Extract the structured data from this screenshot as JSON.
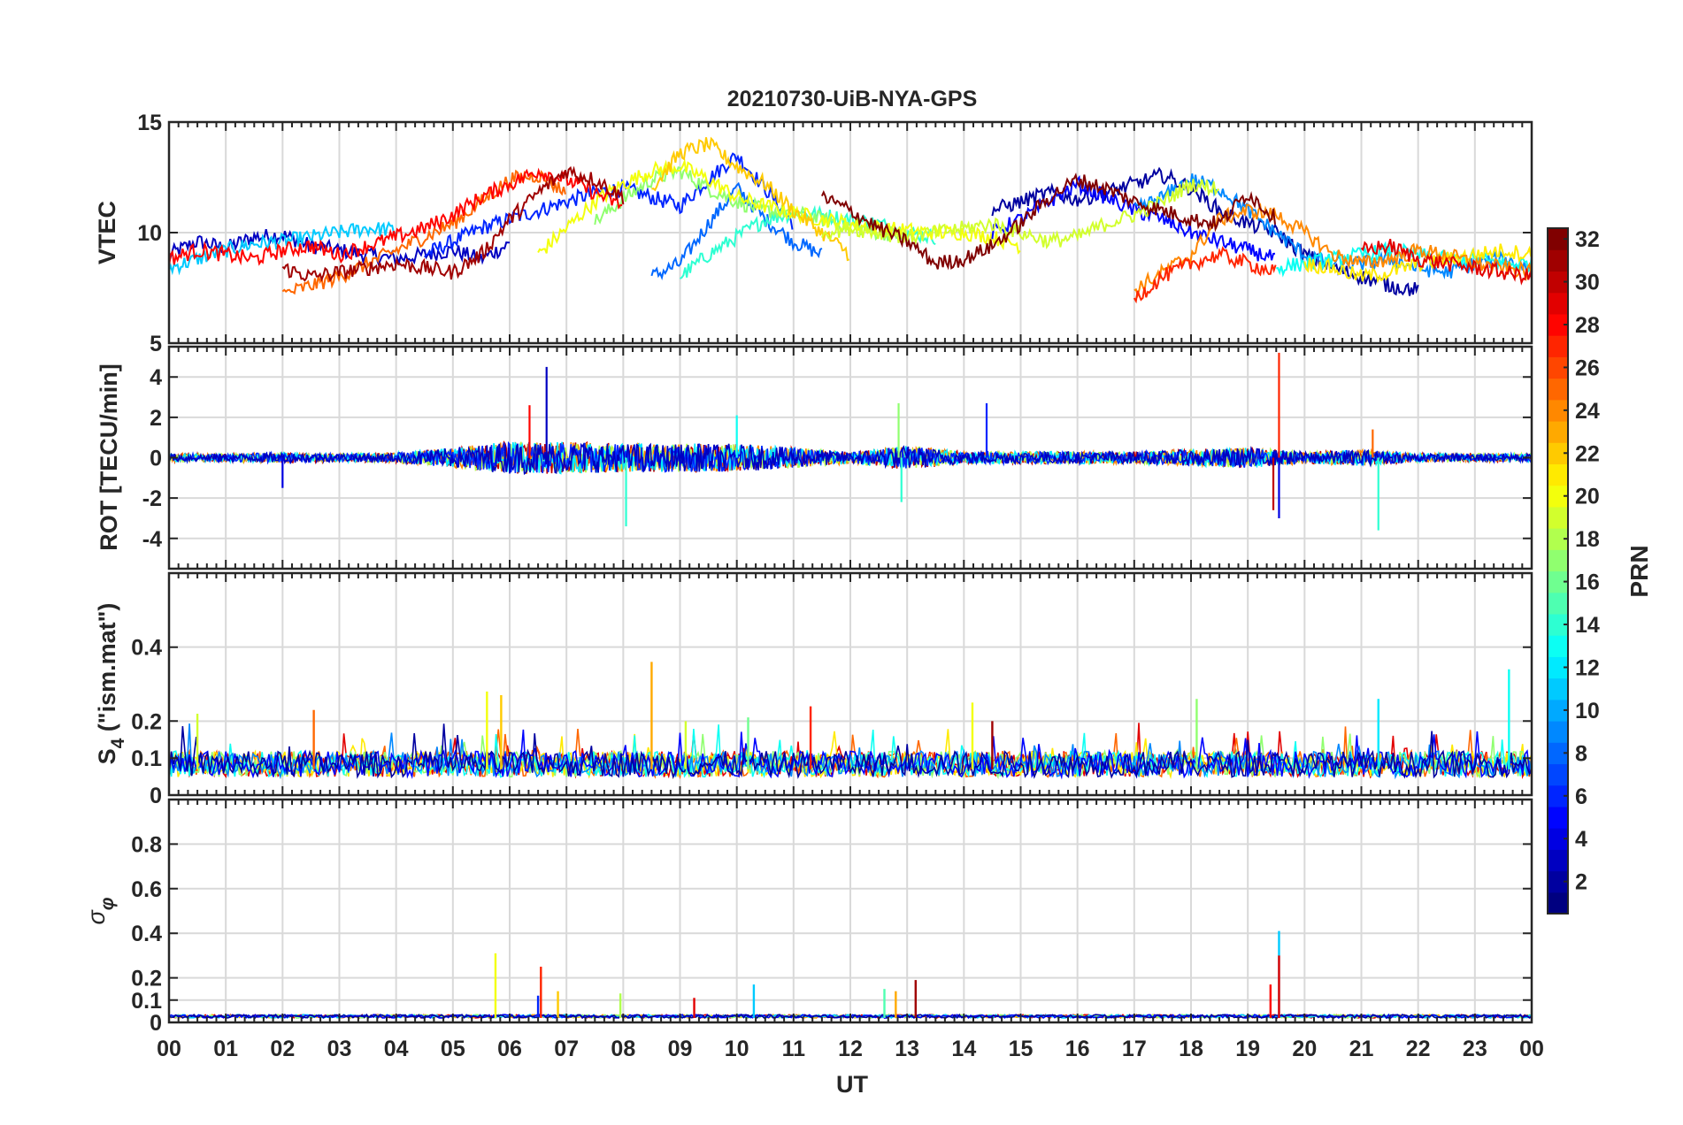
{
  "chart_data": [
    {
      "type": "line",
      "panel": "vtec",
      "title": "20210730-UiB-NYA-GPS",
      "ylabel": "VTEC",
      "ylim": [
        5,
        15
      ],
      "yticks": [
        5,
        10,
        15
      ],
      "xlim": [
        0,
        24
      ],
      "grid": true,
      "series": [
        {
          "prn": 3,
          "x": [
            0,
            0.5,
            1,
            1.5,
            2,
            2.5,
            3,
            3.5,
            4,
            4.5,
            5,
            5.5,
            6
          ],
          "y": [
            9.0,
            9.6,
            9.3,
            9.8,
            9.9,
            9.4,
            9.2,
            9.0,
            8.8,
            9.0,
            9.2,
            8.8,
            9.5
          ]
        },
        {
          "prn": 6,
          "x": [
            4.5,
            5,
            5.5,
            6,
            6.5,
            7,
            7.5,
            8,
            8.5,
            9,
            9.5,
            10,
            10.5,
            11
          ],
          "y": [
            9.0,
            9.6,
            10.2,
            10.6,
            11.0,
            11.4,
            11.8,
            12.0,
            11.6,
            11.2,
            12.4,
            13.5,
            12.0,
            10.4
          ]
        },
        {
          "prn": 8,
          "x": [
            8.5,
            9,
            9.5,
            10,
            10.5,
            11,
            11.5
          ],
          "y": [
            8.0,
            8.6,
            10.4,
            12.0,
            10.6,
            9.6,
            9.0
          ]
        },
        {
          "prn": 11,
          "x": [
            0,
            0.5,
            1,
            1.5,
            2,
            2.5,
            3,
            3.5,
            4
          ],
          "y": [
            8.4,
            8.8,
            9.2,
            9.5,
            9.6,
            9.8,
            10.0,
            10.2,
            10.1
          ]
        },
        {
          "prn": 14,
          "x": [
            9,
            9.5,
            10,
            10.5,
            11,
            11.5,
            12,
            12.5,
            13,
            13.5
          ],
          "y": [
            8.0,
            9.0,
            9.8,
            10.6,
            10.9,
            10.8,
            10.6,
            10.4,
            10.0,
            9.8
          ]
        },
        {
          "prn": 17,
          "x": [
            7.5,
            8,
            8.5,
            9,
            9.5,
            10,
            10.5,
            11,
            11.5,
            12,
            12.5,
            13
          ],
          "y": [
            10.5,
            11.5,
            12.4,
            12.8,
            12.0,
            11.4,
            11.0,
            10.9,
            10.6,
            10.3,
            10.0,
            9.9
          ]
        },
        {
          "prn": 20,
          "x": [
            6.5,
            7,
            7.5,
            8,
            8.5,
            9,
            9.5,
            10,
            10.5,
            11,
            11.5,
            12,
            12.5,
            13,
            13.5,
            14,
            14.5,
            15
          ],
          "y": [
            9.0,
            10.2,
            11.4,
            12.2,
            12.8,
            13.0,
            12.4,
            11.6,
            11.2,
            10.9,
            10.6,
            10.4,
            10.2,
            10.1,
            10.0,
            10.0,
            9.8,
            9.4
          ]
        },
        {
          "prn": 22,
          "x": [
            8.5,
            9,
            9.5,
            10,
            10.5,
            11,
            11.5,
            12
          ],
          "y": [
            12.0,
            13.6,
            14.0,
            13.0,
            12.2,
            11.0,
            10.0,
            9.0
          ]
        },
        {
          "prn": 25,
          "x": [
            2,
            2.5,
            3,
            3.5,
            4,
            4.5,
            5,
            5.5,
            6,
            6.5,
            7
          ],
          "y": [
            7.2,
            7.6,
            8.0,
            8.6,
            9.2,
            9.8,
            10.4,
            11.4,
            12.4,
            12.6,
            11.8
          ]
        },
        {
          "prn": 28,
          "x": [
            0,
            0.5,
            1,
            1.5,
            2,
            2.5,
            3,
            3.5,
            4,
            4.5,
            5,
            5.5,
            6,
            6.5,
            7,
            7.5,
            8
          ],
          "y": [
            8.8,
            9.2,
            9.0,
            8.8,
            9.2,
            9.4,
            9.0,
            9.4,
            9.8,
            10.2,
            10.8,
            11.6,
            12.2,
            12.8,
            12.4,
            11.8,
            11.2
          ]
        },
        {
          "prn": 31,
          "x": [
            2,
            2.5,
            3,
            3.5,
            4,
            4.5,
            5,
            5.5,
            6,
            6.5,
            7,
            7.5,
            8
          ],
          "y": [
            8.4,
            8.0,
            8.2,
            8.4,
            8.6,
            8.4,
            8.2,
            9.0,
            10.6,
            11.8,
            12.8,
            12.4,
            11.6
          ]
        },
        {
          "prn": 2,
          "x": [
            14.5,
            15,
            15.5,
            16,
            16.5,
            17,
            17.5,
            18,
            18.5,
            19,
            19.5,
            20,
            20.5,
            21,
            21.5,
            22
          ],
          "y": [
            11.0,
            11.4,
            11.8,
            11.5,
            11.8,
            12.2,
            12.6,
            12.0,
            11.0,
            10.4,
            10.0,
            9.0,
            8.4,
            8.0,
            7.6,
            7.4
          ]
        },
        {
          "prn": 5,
          "x": [
            14.5,
            15,
            15.5,
            16,
            16.5,
            17,
            17.5,
            18,
            18.5,
            19,
            19.5
          ],
          "y": [
            10.0,
            10.6,
            11.4,
            12.2,
            11.6,
            11.0,
            10.6,
            10.0,
            9.6,
            9.2,
            8.8
          ]
        },
        {
          "prn": 9,
          "x": [
            17,
            17.5,
            18,
            18.5,
            19,
            19.5,
            20,
            20.5,
            21,
            21.5,
            22,
            22.5,
            23,
            23.5,
            24
          ],
          "y": [
            11.0,
            11.6,
            12.4,
            12.0,
            11.0,
            10.0,
            9.0,
            8.6,
            8.6,
            8.8,
            8.4,
            8.2,
            8.6,
            8.8,
            8.4
          ]
        },
        {
          "prn": 13,
          "x": [
            19.5,
            20,
            20.5,
            21,
            21.5,
            22,
            22.5,
            23,
            23.5,
            24
          ],
          "y": [
            8.4,
            8.6,
            8.8,
            9.0,
            9.2,
            9.0,
            8.8,
            8.8,
            8.6,
            8.6
          ]
        },
        {
          "prn": 19,
          "x": [
            11.5,
            12,
            12.5,
            13,
            13.5,
            14,
            14.5,
            15,
            15.5,
            16,
            16.5,
            17,
            17.5,
            18,
            18.5
          ],
          "y": [
            10.0,
            10.2,
            10.0,
            9.8,
            10.0,
            10.2,
            10.4,
            10.0,
            9.6,
            9.8,
            10.4,
            10.8,
            11.4,
            12.2,
            12.0
          ]
        },
        {
          "prn": 21,
          "x": [
            20,
            20.5,
            21,
            21.5,
            22,
            22.5,
            23,
            23.5,
            24
          ],
          "y": [
            8.6,
            8.4,
            8.0,
            8.2,
            8.6,
            8.8,
            9.0,
            9.2,
            9.0
          ]
        },
        {
          "prn": 24,
          "x": [
            17,
            17.5,
            18,
            18.5,
            19,
            19.5,
            20,
            20.5,
            21,
            21.5,
            22,
            22.5,
            23,
            23.5,
            24
          ],
          "y": [
            7.4,
            8.2,
            9.0,
            10.6,
            11.0,
            10.8,
            10.0,
            9.0,
            8.6,
            8.8,
            9.2,
            9.0,
            8.6,
            8.4,
            8.2
          ]
        },
        {
          "prn": 27,
          "x": [
            17,
            17.5,
            18,
            18.5,
            19,
            19.5
          ],
          "y": [
            7.0,
            8.0,
            8.6,
            9.0,
            8.6,
            8.2
          ]
        },
        {
          "prn": 29,
          "x": [
            21,
            21.5,
            22,
            22.5,
            23,
            23.5,
            24
          ],
          "y": [
            9.2,
            9.4,
            8.8,
            8.6,
            8.4,
            8.2,
            8.0
          ]
        },
        {
          "prn": 32,
          "x": [
            11.5,
            12,
            12.5,
            13,
            13.5,
            14,
            14.5,
            15,
            15.5,
            16,
            16.5,
            17,
            17.5,
            18,
            18.5,
            19,
            19.5
          ],
          "y": [
            11.6,
            11.0,
            10.2,
            9.6,
            8.6,
            8.8,
            9.4,
            10.4,
            11.6,
            12.4,
            12.0,
            11.4,
            11.0,
            10.6,
            10.4,
            11.8,
            10.6
          ]
        }
      ]
    },
    {
      "type": "line",
      "panel": "rot",
      "ylabel": "ROT [TECU/min]",
      "ylim": [
        -5.5,
        5.5
      ],
      "yticks": [
        -4,
        -2,
        0,
        2,
        4
      ],
      "xlim": [
        0,
        24
      ],
      "grid": true,
      "noise_profile": {
        "x": [
          0,
          1,
          2,
          3,
          4,
          5,
          6,
          7,
          8,
          9,
          10,
          11,
          12,
          13,
          14,
          15,
          16,
          17,
          18,
          19,
          20,
          21,
          22,
          23,
          24
        ],
        "amp": [
          0.2,
          0.2,
          0.25,
          0.2,
          0.25,
          0.5,
          0.8,
          0.8,
          0.7,
          0.7,
          0.7,
          0.5,
          0.3,
          0.6,
          0.3,
          0.3,
          0.3,
          0.3,
          0.4,
          0.5,
          0.3,
          0.4,
          0.2,
          0.2,
          0.2
        ]
      },
      "spikes": [
        {
          "x": 6.65,
          "y": 4.5,
          "prn": 3
        },
        {
          "x": 6.35,
          "y": 2.6,
          "prn": 28
        },
        {
          "x": 8.05,
          "y": -3.4,
          "prn": 14
        },
        {
          "x": 10.0,
          "y": 2.1,
          "prn": 13
        },
        {
          "x": 12.85,
          "y": 2.7,
          "prn": 17
        },
        {
          "x": 12.9,
          "y": -2.2,
          "prn": 14
        },
        {
          "x": 14.4,
          "y": 2.7,
          "prn": 6
        },
        {
          "x": 19.55,
          "y": 5.2,
          "prn": 27
        },
        {
          "x": 19.55,
          "y": -3.0,
          "prn": 4
        },
        {
          "x": 19.45,
          "y": -2.6,
          "prn": 30
        },
        {
          "x": 21.3,
          "y": -3.6,
          "prn": 14
        },
        {
          "x": 21.2,
          "y": 1.4,
          "prn": 25
        },
        {
          "x": 2.0,
          "y": -1.5,
          "prn": 4
        }
      ]
    },
    {
      "type": "line",
      "panel": "s4",
      "ylabel": "S",
      "ylabel_sub": "4",
      "ylabel_suffix": " (\"ism.mat\")",
      "ylim": [
        0,
        0.6
      ],
      "yticks": [
        0,
        0.1,
        0.2,
        0.4
      ],
      "xlim": [
        0,
        24
      ],
      "grid": true,
      "baseline": 0.07,
      "spikes": [
        {
          "x": 0.5,
          "y": 0.22,
          "prn": 19
        },
        {
          "x": 2.55,
          "y": 0.23,
          "prn": 25
        },
        {
          "x": 5.6,
          "y": 0.28,
          "prn": 20
        },
        {
          "x": 5.85,
          "y": 0.27,
          "prn": 22
        },
        {
          "x": 8.5,
          "y": 0.36,
          "prn": 23
        },
        {
          "x": 9.1,
          "y": 0.2,
          "prn": 19
        },
        {
          "x": 10.2,
          "y": 0.21,
          "prn": 16
        },
        {
          "x": 11.3,
          "y": 0.24,
          "prn": 27
        },
        {
          "x": 14.15,
          "y": 0.25,
          "prn": 20
        },
        {
          "x": 14.5,
          "y": 0.2,
          "prn": 31
        },
        {
          "x": 18.1,
          "y": 0.26,
          "prn": 17
        },
        {
          "x": 21.3,
          "y": 0.26,
          "prn": 12
        },
        {
          "x": 23.6,
          "y": 0.34,
          "prn": 13
        }
      ]
    },
    {
      "type": "line",
      "panel": "sigma",
      "ylabel": "σ",
      "ylabel_sub": "φ",
      "ylim": [
        0,
        1
      ],
      "yticks": [
        0,
        0.1,
        0.2,
        0.4,
        0.6,
        0.8
      ],
      "xlim": [
        0,
        24
      ],
      "xticks": [
        "00",
        "01",
        "02",
        "03",
        "04",
        "05",
        "06",
        "07",
        "08",
        "09",
        "10",
        "11",
        "12",
        "13",
        "14",
        "15",
        "16",
        "17",
        "18",
        "19",
        "20",
        "21",
        "22",
        "23",
        "00"
      ],
      "xlabel": "UT",
      "grid": true,
      "baseline": 0.02,
      "spikes": [
        {
          "x": 5.75,
          "y": 0.31,
          "prn": 20
        },
        {
          "x": 6.55,
          "y": 0.25,
          "prn": 27
        },
        {
          "x": 6.5,
          "y": 0.12,
          "prn": 6
        },
        {
          "x": 6.85,
          "y": 0.14,
          "prn": 22
        },
        {
          "x": 7.95,
          "y": 0.13,
          "prn": 18
        },
        {
          "x": 9.25,
          "y": 0.11,
          "prn": 29
        },
        {
          "x": 10.3,
          "y": 0.17,
          "prn": 11
        },
        {
          "x": 12.6,
          "y": 0.15,
          "prn": 15
        },
        {
          "x": 12.8,
          "y": 0.14,
          "prn": 23
        },
        {
          "x": 13.15,
          "y": 0.19,
          "prn": 31
        },
        {
          "x": 19.4,
          "y": 0.17,
          "prn": 28
        },
        {
          "x": 19.55,
          "y": 0.41,
          "prn": 11
        },
        {
          "x": 19.55,
          "y": 0.3,
          "prn": 29
        }
      ]
    }
  ],
  "colorbar": {
    "label": "PRN",
    "range": [
      1,
      32
    ],
    "ticks": [
      2,
      4,
      6,
      8,
      10,
      12,
      14,
      16,
      18,
      20,
      22,
      24,
      26,
      28,
      30,
      32
    ],
    "colormap": "jet"
  }
}
